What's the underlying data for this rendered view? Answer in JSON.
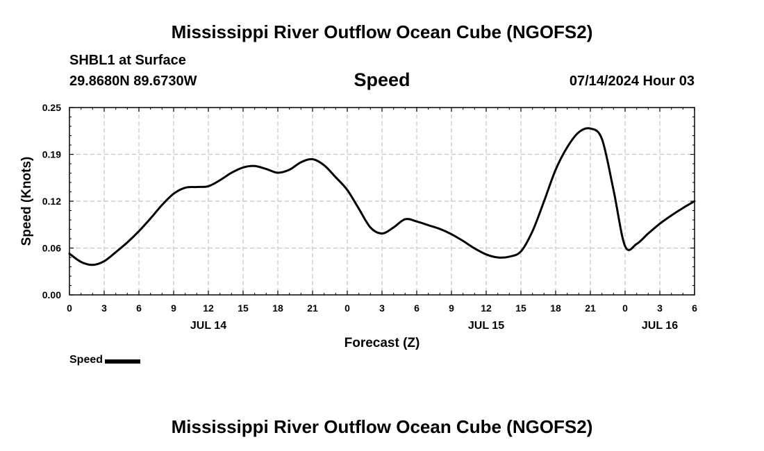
{
  "header": {
    "title": "Mississippi River Outflow Ocean Cube (NGOFS2)",
    "station": "SHBL1 at Surface",
    "coords": "29.8680N  89.6730W",
    "date": "07/14/2024 Hour 03"
  },
  "footer": {
    "title": "Mississippi River Outflow Ocean Cube (NGOFS2)"
  },
  "chart_data": {
    "type": "line",
    "title": "Speed",
    "xlabel": "Forecast (Z)",
    "ylabel": "Speed (Knots)",
    "x_unit": "hours since 2024-07-14 00Z",
    "xlim": [
      0,
      54
    ],
    "ylim": [
      0.0,
      0.25
    ],
    "grid": true,
    "x_ticks": [
      0,
      3,
      6,
      9,
      12,
      15,
      18,
      21,
      24,
      27,
      30,
      33,
      36,
      39,
      42,
      45,
      48,
      51,
      54
    ],
    "x_tick_labels": [
      "0",
      "3",
      "6",
      "9",
      "12",
      "15",
      "18",
      "21",
      "0",
      "3",
      "6",
      "9",
      "12",
      "15",
      "18",
      "21",
      "0",
      "3",
      "6"
    ],
    "y_ticks": [
      0.0,
      0.0625,
      0.125,
      0.1875,
      0.25
    ],
    "y_tick_labels": [
      "0.00",
      "0.06",
      "0.12",
      "0.19",
      "0.25"
    ],
    "day_labels": [
      {
        "label": "JUL 14",
        "x": 12
      },
      {
        "label": "JUL 15",
        "x": 36
      },
      {
        "label": "JUL 16",
        "x": 51
      }
    ],
    "legend": {
      "position": "bottom-left",
      "label": "Speed"
    },
    "series": [
      {
        "name": "Speed",
        "color": "#000000",
        "x": [
          0,
          1,
          2,
          3,
          4,
          5,
          6,
          7,
          8,
          9,
          10,
          11,
          12,
          13,
          14,
          15,
          16,
          17,
          18,
          19,
          20,
          21,
          22,
          23,
          24,
          25,
          26,
          27,
          28,
          29,
          30,
          31,
          32,
          33,
          34,
          35,
          36,
          37,
          38,
          39,
          40,
          41,
          42,
          43,
          44,
          45,
          46,
          47,
          48,
          49,
          50,
          51,
          52,
          53,
          54
        ],
        "y": [
          0.055,
          0.044,
          0.04,
          0.045,
          0.057,
          0.07,
          0.085,
          0.102,
          0.12,
          0.135,
          0.143,
          0.144,
          0.145,
          0.153,
          0.163,
          0.17,
          0.172,
          0.168,
          0.163,
          0.167,
          0.177,
          0.181,
          0.173,
          0.157,
          0.14,
          0.115,
          0.09,
          0.082,
          0.09,
          0.101,
          0.098,
          0.093,
          0.088,
          0.081,
          0.072,
          0.062,
          0.054,
          0.05,
          0.051,
          0.058,
          0.085,
          0.125,
          0.167,
          0.197,
          0.217,
          0.222,
          0.208,
          0.14,
          0.065,
          0.068,
          0.082,
          0.095,
          0.106,
          0.116,
          0.125
        ]
      }
    ]
  }
}
